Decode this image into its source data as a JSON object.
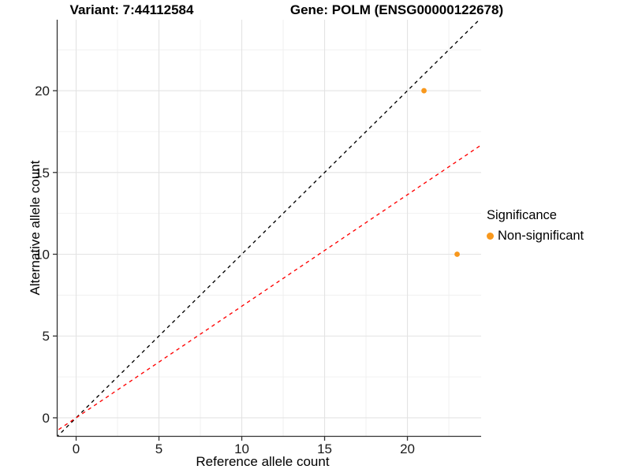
{
  "titles": {
    "variant": "Variant: 7:44112584",
    "gene": "Gene: POLM (ENSG00000122678)"
  },
  "chart_data": {
    "type": "scatter",
    "title_left": "Variant: 7:44112584",
    "title_right": "Gene: POLM (ENSG00000122678)",
    "xlabel": "Reference allele count",
    "ylabel": "Alternative allele count",
    "xlim": [
      -1.12,
      24.45
    ],
    "ylim": [
      -1.11,
      24.34
    ],
    "xticks": [
      0,
      5,
      10,
      15,
      20
    ],
    "yticks": [
      0,
      5,
      10,
      15,
      20
    ],
    "minor_xticks": [
      2.5,
      7.5,
      12.5,
      17.5,
      22.5
    ],
    "minor_yticks": [
      2.5,
      7.5,
      12.5,
      17.5,
      22.5
    ],
    "grid": true,
    "points": [
      {
        "x": 21,
        "y": 20,
        "series": "Non-significant"
      },
      {
        "x": 23,
        "y": 10,
        "series": "Non-significant"
      }
    ],
    "lines": [
      {
        "name": "identity-line",
        "slope": 1.0,
        "intercept": 0,
        "color": "#000000",
        "style": "dashed"
      },
      {
        "name": "allelic-ratio-line",
        "slope": 0.682,
        "intercept": 0,
        "color": "#FF0000",
        "style": "dashed"
      }
    ],
    "legend": {
      "title": "Significance",
      "position": "right",
      "items": [
        {
          "label": "Non-significant",
          "color": "#F8981D",
          "marker": "circle"
        }
      ]
    },
    "colors": {
      "point": "#F8981D",
      "grid_major": "#E3E3E3",
      "grid_minor": "#EFEFEF",
      "axis": "#333333",
      "tick_text": "#1a1a1a"
    }
  }
}
